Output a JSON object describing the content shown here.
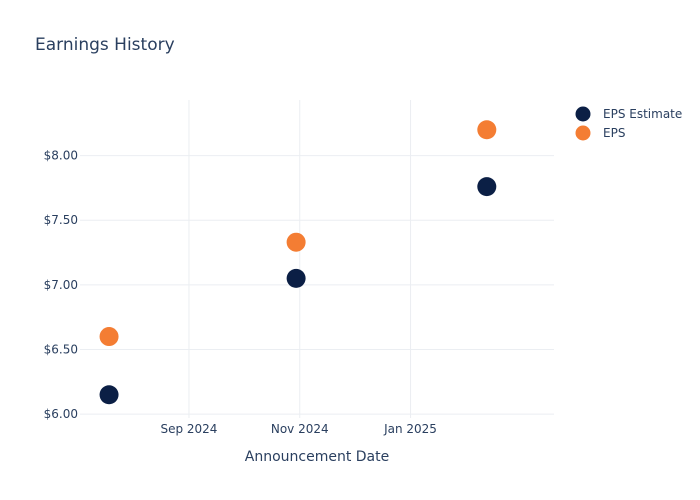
{
  "chart_data": {
    "type": "scatter",
    "title": "Earnings History",
    "xlabel": "Announcement Date",
    "ylabel": "",
    "x_axis_type": "date",
    "xlim": [
      "2024-07-03",
      "2025-03-21"
    ],
    "ylim": [
      5.97,
      8.43
    ],
    "x_ticks": [
      {
        "value": "2024-09-01",
        "label": "Sep 2024"
      },
      {
        "value": "2024-11-01",
        "label": "Nov 2024"
      },
      {
        "value": "2025-01-01",
        "label": "Jan 2025"
      }
    ],
    "y_ticks": [
      {
        "value": 6.0,
        "label": "$6.00"
      },
      {
        "value": 6.5,
        "label": "$6.50"
      },
      {
        "value": 7.0,
        "label": "$7.00"
      },
      {
        "value": 7.5,
        "label": "$7.50"
      },
      {
        "value": 8.0,
        "label": "$8.00"
      }
    ],
    "grid": true,
    "legend_position": "top-right",
    "series": [
      {
        "name": "EPS Estimate",
        "color": "#0b1f45",
        "points": [
          {
            "x": "2024-07-19",
            "y": 6.15
          },
          {
            "x": "2024-10-30",
            "y": 7.05
          },
          {
            "x": "2025-02-12",
            "y": 7.76
          }
        ]
      },
      {
        "name": "EPS",
        "color": "#f47d33",
        "points": [
          {
            "x": "2024-07-19",
            "y": 6.6
          },
          {
            "x": "2024-10-30",
            "y": 7.33
          },
          {
            "x": "2025-02-12",
            "y": 8.2
          }
        ]
      }
    ]
  }
}
